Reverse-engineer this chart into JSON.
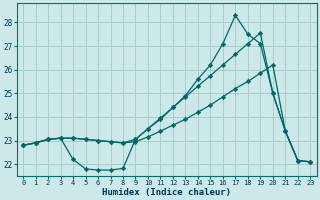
{
  "xlabel": "Humidex (Indice chaleur)",
  "bg_color": "#cce8e8",
  "line_color": "#006868",
  "grid_color": "#aacccc",
  "xlim": [
    -0.5,
    23.5
  ],
  "ylim": [
    21.5,
    28.8
  ],
  "yticks": [
    22,
    23,
    24,
    25,
    26,
    27,
    28
  ],
  "xticks": [
    0,
    1,
    2,
    3,
    4,
    5,
    6,
    7,
    8,
    9,
    10,
    11,
    12,
    13,
    14,
    15,
    16,
    17,
    18,
    19,
    20,
    21,
    22,
    23
  ],
  "line1_x": [
    0,
    1,
    2,
    3,
    4,
    5,
    6,
    7,
    8,
    9,
    10,
    11,
    12,
    13,
    14,
    15,
    16,
    17,
    18,
    19,
    20,
    21,
    22,
    23
  ],
  "line1_y": [
    22.8,
    22.9,
    23.05,
    23.1,
    22.2,
    21.8,
    21.75,
    21.75,
    21.82,
    23.05,
    23.5,
    23.9,
    24.4,
    24.9,
    25.6,
    26.2,
    27.1,
    28.3,
    27.5,
    27.1,
    25.0,
    23.4,
    22.15,
    22.1
  ],
  "line2_x": [
    0,
    1,
    2,
    3,
    4,
    5,
    6,
    7,
    8,
    9,
    10,
    11,
    12,
    13,
    14,
    15,
    16,
    17,
    18,
    19,
    20,
    21,
    22,
    23
  ],
  "line2_y": [
    22.8,
    22.9,
    23.05,
    23.1,
    23.1,
    23.05,
    23.0,
    22.95,
    22.9,
    22.95,
    23.15,
    23.4,
    23.65,
    23.9,
    24.2,
    24.5,
    24.85,
    25.2,
    25.5,
    25.85,
    26.2,
    23.4,
    22.15,
    22.1
  ],
  "line3_x": [
    0,
    1,
    2,
    3,
    4,
    5,
    6,
    7,
    8,
    9,
    10,
    11,
    12,
    13,
    14,
    15,
    16,
    17,
    18,
    19,
    20,
    21,
    22,
    23
  ],
  "line3_y": [
    22.8,
    22.9,
    23.05,
    23.1,
    23.1,
    23.05,
    23.0,
    22.95,
    22.9,
    23.05,
    23.5,
    23.95,
    24.4,
    24.85,
    25.3,
    25.75,
    26.2,
    26.65,
    27.1,
    27.55,
    25.0,
    23.4,
    22.15,
    22.1
  ]
}
